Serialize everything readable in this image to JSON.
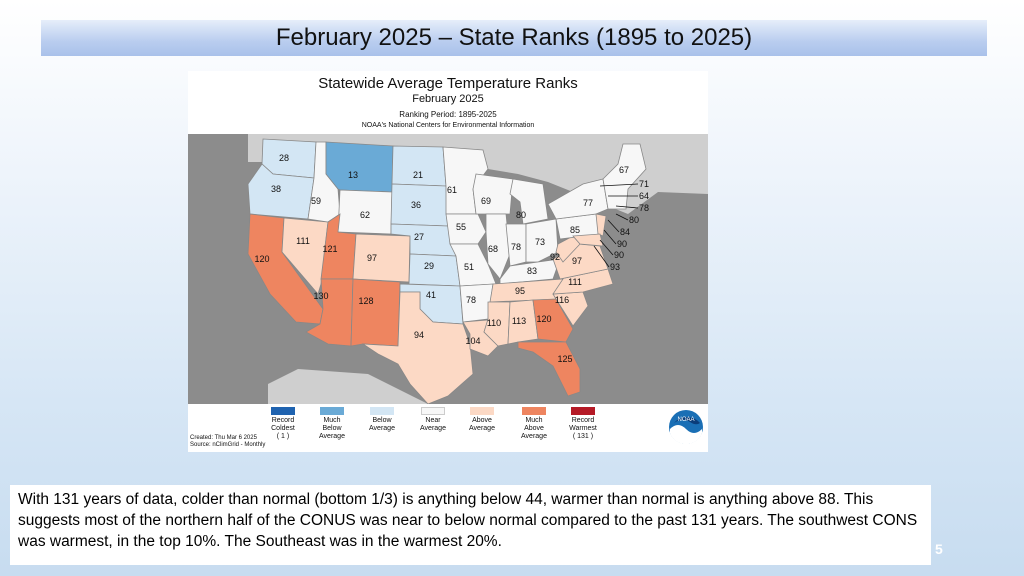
{
  "slide": {
    "title": "February 2025 – State Ranks (1895 to 2025)",
    "page_number": "5",
    "caption": "With 131 years of data, colder than normal (bottom 1/3) is anything below 44, warmer than normal is anything above 88.  This suggests most of the northern half of the CONUS was near to below normal compared to the past 131 years.  The southwest CONS was warmest, in the top 10%. The Southeast was in the warmest 20%."
  },
  "map": {
    "title": "Statewide Average Temperature Ranks",
    "subtitle": "February 2025",
    "period": "Ranking Period: 1895-2025",
    "source_line": "NOAA's National Centers for Environmental Information",
    "created": "Created: Thu Mar  6 2025",
    "source": "Source: nClimGrid - Monthly",
    "logo_text": "NOAA",
    "colors": {
      "record_coldest": "#1f63b0",
      "much_below": "#6aaad6",
      "below": "#d3e6f4",
      "near": "#f7f7f7",
      "above": "#fcd9c5",
      "much_above": "#ee8560",
      "record_warmest": "#b51a26",
      "background": "#8c8c8c"
    },
    "legend": [
      {
        "label": "Record\nColdest\n( 1 )",
        "color": "#1f63b0"
      },
      {
        "label": "Much\nBelow\nAverage",
        "color": "#6aaad6"
      },
      {
        "label": "Below\nAverage",
        "color": "#d3e6f4"
      },
      {
        "label": "Near\nAverage",
        "color": "#f7f7f7"
      },
      {
        "label": "Above\nAverage",
        "color": "#fcd9c5"
      },
      {
        "label": "Much\nAbove\nAverage",
        "color": "#ee8560"
      },
      {
        "label": "Record\nWarmest\n( 131 )",
        "color": "#b51a26"
      }
    ],
    "state_ranks": {
      "WA": "28",
      "OR": "38",
      "ID": "59",
      "MT": "13",
      "WY": "62",
      "ND": "21",
      "SD": "36",
      "NE": "27",
      "KS": "29",
      "OK": "41",
      "TX": "94",
      "CA": "120",
      "NV": "111",
      "UT": "121",
      "CO": "97",
      "AZ": "130",
      "NM": "128",
      "MN": "61",
      "IA": "55",
      "MO": "51",
      "AR": "78",
      "LA": "104",
      "WI": "69",
      "IL": "68",
      "IN": "78",
      "OH": "73",
      "MI": "80",
      "KY": "83",
      "TN": "95",
      "MS": "110",
      "AL": "113",
      "GA": "120",
      "FL": "125",
      "SC": "116",
      "NC": "111",
      "VA": "97",
      "WV": "92",
      "PA": "85",
      "NY": "77",
      "ME": "67",
      "NH": "71",
      "VT": "64",
      "MA": "78",
      "RI": "80",
      "CT": "84",
      "NJ": "90",
      "DE": "90",
      "MD": "93"
    }
  }
}
